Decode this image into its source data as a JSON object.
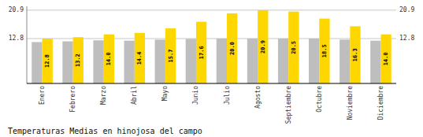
{
  "chart_data": {
    "type": "bar",
    "title": "Temperaturas Medias en hinojosa del campo",
    "categories": [
      "Enero",
      "Febrero",
      "Marzo",
      "Abril",
      "Mayo",
      "Junio",
      "Julio",
      "Agosto",
      "Septiembre",
      "Octubre",
      "Noviembre",
      "Diciembre"
    ],
    "series": [
      {
        "color": "#BEBEBE",
        "values": [
          11.8,
          12.0,
          12.3,
          12.2,
          12.5,
          12.7,
          12.8,
          12.8,
          12.8,
          12.8,
          12.5,
          12.2
        ]
      },
      {
        "color": "#FFD700",
        "values": [
          12.8,
          13.2,
          14.0,
          14.4,
          15.7,
          17.6,
          20.0,
          20.9,
          20.5,
          18.5,
          16.3,
          14.0
        ],
        "value_labels": [
          "12.8",
          "13.2",
          "14.0",
          "14.4",
          "15.7",
          "17.6",
          "20.0",
          "20.9",
          "20.5",
          "18.5",
          "16.3",
          "14.0"
        ],
        "data_labels": true
      }
    ],
    "ylim": [
      0,
      22.0
    ],
    "yticks": [
      12.8,
      20.9
    ],
    "y2lim": [
      0,
      22.0
    ],
    "y2ticks": [
      12.8,
      20.9
    ],
    "grid": true
  }
}
